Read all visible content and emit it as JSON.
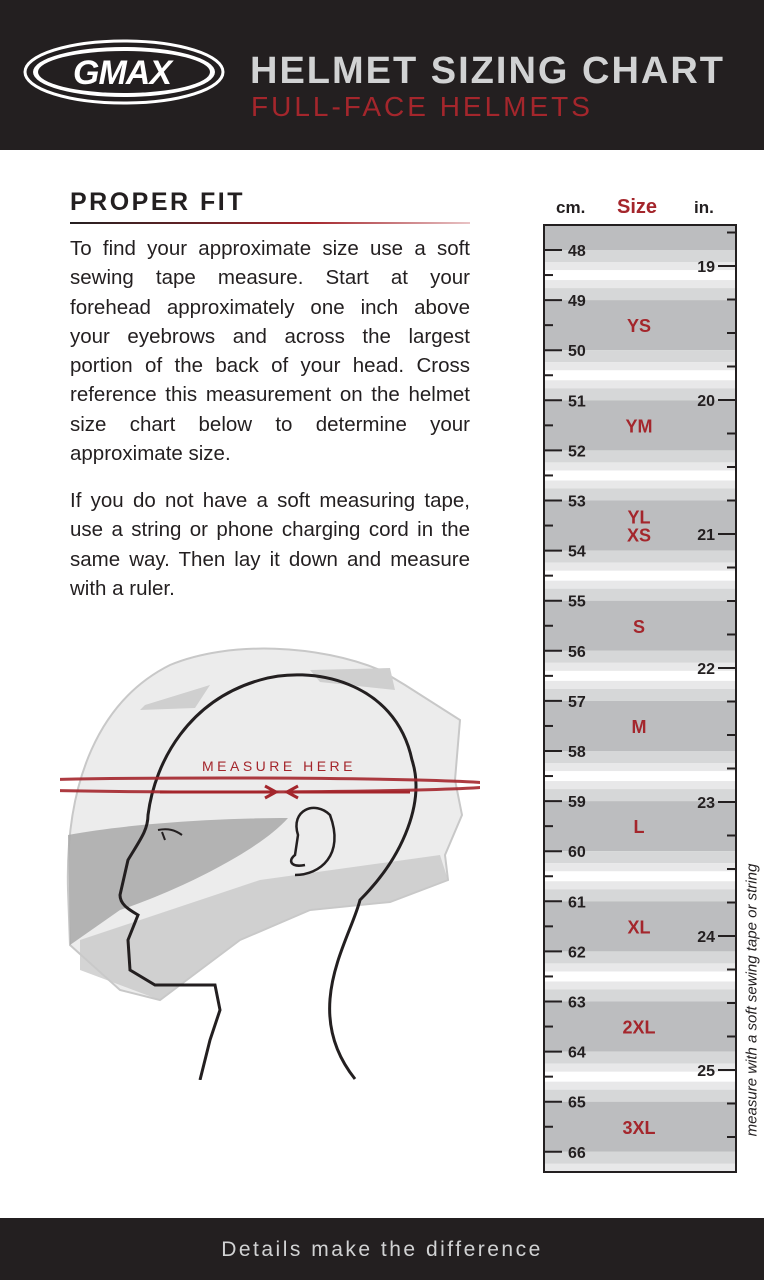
{
  "header": {
    "logo_text": "GMAX",
    "title": "HELMET SIZING CHART",
    "subtitle": "FULL-FACE HELMETS"
  },
  "proper_fit": {
    "title": "PROPER FIT",
    "paragraph1": "To find your approximate size use a soft sewing tape measure. Start at your forehead approximately one inch above your eyebrows and across the largest portion of the back of your head. Cross reference this measurement on the helmet size chart below to determine your approximate size.",
    "paragraph2": "If you do not have a soft measuring tape, use a string or phone charging cord in the same way. Then lay it down and measure with a ruler."
  },
  "illustration": {
    "label": "MEASURE HERE"
  },
  "size_chart": {
    "cm_header": "cm.",
    "size_header": "Size",
    "in_header": "in.",
    "cm_labels": [
      "48",
      "49",
      "50",
      "51",
      "52",
      "53",
      "54",
      "55",
      "56",
      "57",
      "58",
      "59",
      "60",
      "61",
      "62",
      "63",
      "64",
      "65",
      "66"
    ],
    "in_labels": [
      "19",
      "20",
      "21",
      "22",
      "23",
      "24",
      "25"
    ],
    "sizes": [
      {
        "label": "YS",
        "cm_from": 49,
        "cm_to": 50
      },
      {
        "label": "YM",
        "cm_from": 51,
        "cm_to": 52
      },
      {
        "label": "YL",
        "cm_from": 53,
        "cm_to": 54
      },
      {
        "label": "XS",
        "cm_from": 53,
        "cm_to": 54
      },
      {
        "label": "S",
        "cm_from": 55,
        "cm_to": 56
      },
      {
        "label": "M",
        "cm_from": 57,
        "cm_to": 58
      },
      {
        "label": "L",
        "cm_from": 59,
        "cm_to": 60
      },
      {
        "label": "XL",
        "cm_from": 61,
        "cm_to": 62
      },
      {
        "label": "2XL",
        "cm_from": 63,
        "cm_to": 64
      },
      {
        "label": "3XL",
        "cm_from": 65,
        "cm_to": 66
      }
    ],
    "side_note": "measure with a soft sewing tape or string",
    "colors": {
      "accent": "#a4262c",
      "band": "#bcbdbf"
    }
  },
  "footer": {
    "tagline": "Details make the difference"
  }
}
